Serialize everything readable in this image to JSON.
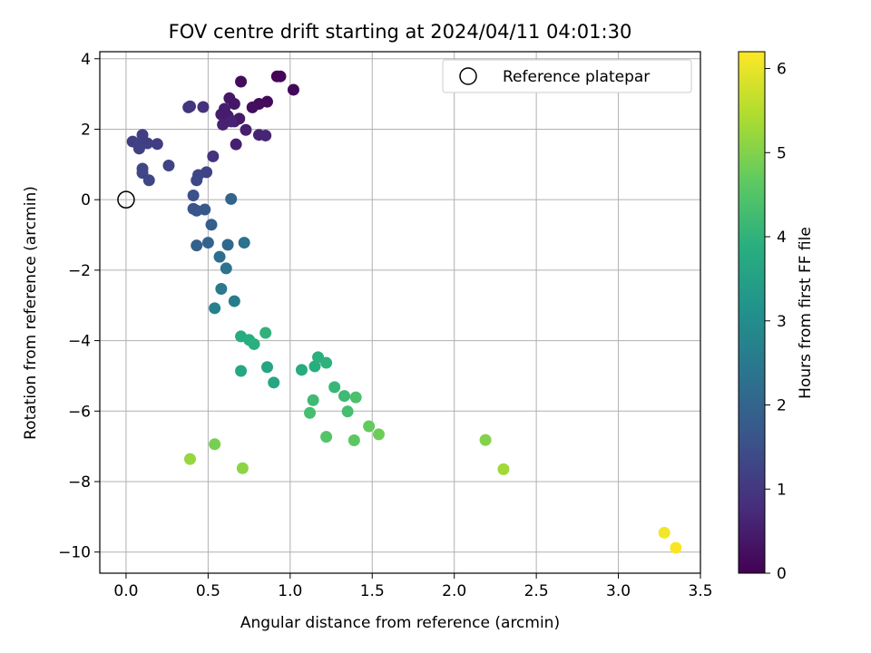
{
  "chart_data": {
    "type": "scatter",
    "title": "FOV centre drift starting at 2024/04/11 04:01:30",
    "xlabel": "Angular distance from reference (arcmin)",
    "ylabel": "Rotation from reference (arcmin)",
    "xlim": [
      -0.16,
      3.5
    ],
    "ylim": [
      -10.6,
      4.2
    ],
    "xticks": [
      0.0,
      0.5,
      1.0,
      1.5,
      2.0,
      2.5,
      3.0,
      3.5
    ],
    "xtick_labels": [
      "0.0",
      "0.5",
      "1.0",
      "1.5",
      "2.0",
      "2.5",
      "3.0",
      "3.5"
    ],
    "yticks": [
      4,
      2,
      0,
      -2,
      -4,
      -6,
      -8,
      -10
    ],
    "ytick_labels": [
      "4",
      "2",
      "0",
      "−2",
      "−4",
      "−6",
      "−8",
      "−10"
    ],
    "grid": true,
    "colormap": "viridis",
    "colorbar": {
      "label": "Hours from first FF file",
      "range": [
        0,
        6.2
      ],
      "ticks": [
        0,
        1,
        2,
        3,
        4,
        5,
        6
      ],
      "tick_labels": [
        "0",
        "1",
        "2",
        "3",
        "4",
        "5",
        "6"
      ]
    },
    "legend": {
      "placement": "top-right",
      "entries": [
        {
          "label": "Reference platepar",
          "marker": "open-circle"
        }
      ]
    },
    "reference_point": {
      "x": 0.0,
      "y": 0.0
    },
    "points": [
      {
        "x": 0.92,
        "y": 3.5,
        "c": 0.05
      },
      {
        "x": 0.94,
        "y": 3.5,
        "c": 0.08
      },
      {
        "x": 1.02,
        "y": 3.12,
        "c": 0.12
      },
      {
        "x": 0.7,
        "y": 3.35,
        "c": 0.2
      },
      {
        "x": 0.86,
        "y": 2.78,
        "c": 0.15
      },
      {
        "x": 0.81,
        "y": 2.72,
        "c": 0.18
      },
      {
        "x": 0.77,
        "y": 2.62,
        "c": 0.22
      },
      {
        "x": 0.63,
        "y": 2.88,
        "c": 0.4
      },
      {
        "x": 0.66,
        "y": 2.72,
        "c": 0.35
      },
      {
        "x": 0.6,
        "y": 2.58,
        "c": 0.55
      },
      {
        "x": 0.58,
        "y": 2.42,
        "c": 0.5
      },
      {
        "x": 0.62,
        "y": 2.38,
        "c": 0.45
      },
      {
        "x": 0.66,
        "y": 2.22,
        "c": 0.48
      },
      {
        "x": 0.69,
        "y": 2.3,
        "c": 0.42
      },
      {
        "x": 0.64,
        "y": 2.22,
        "c": 0.6
      },
      {
        "x": 0.59,
        "y": 2.13,
        "c": 0.58
      },
      {
        "x": 0.73,
        "y": 1.98,
        "c": 0.52
      },
      {
        "x": 0.81,
        "y": 1.84,
        "c": 0.62
      },
      {
        "x": 0.85,
        "y": 1.82,
        "c": 0.65
      },
      {
        "x": 0.67,
        "y": 1.57,
        "c": 0.55
      },
      {
        "x": 0.47,
        "y": 2.63,
        "c": 0.85
      },
      {
        "x": 0.39,
        "y": 2.65,
        "c": 0.9
      },
      {
        "x": 0.38,
        "y": 2.62,
        "c": 0.95
      },
      {
        "x": 0.53,
        "y": 1.23,
        "c": 0.9
      },
      {
        "x": 0.04,
        "y": 1.65,
        "c": 1.1
      },
      {
        "x": 0.1,
        "y": 1.84,
        "c": 1.15
      },
      {
        "x": 0.08,
        "y": 1.58,
        "c": 1.2
      },
      {
        "x": 0.13,
        "y": 1.6,
        "c": 1.15
      },
      {
        "x": 0.19,
        "y": 1.58,
        "c": 1.1
      },
      {
        "x": 0.08,
        "y": 1.45,
        "c": 1.2
      },
      {
        "x": 0.26,
        "y": 0.97,
        "c": 1.25
      },
      {
        "x": 0.1,
        "y": 0.88,
        "c": 1.3
      },
      {
        "x": 0.1,
        "y": 0.76,
        "c": 1.35
      },
      {
        "x": 0.14,
        "y": 0.55,
        "c": 1.3
      },
      {
        "x": 0.44,
        "y": 0.7,
        "c": 1.3
      },
      {
        "x": 0.49,
        "y": 0.78,
        "c": 1.25
      },
      {
        "x": 0.43,
        "y": 0.55,
        "c": 1.35
      },
      {
        "x": 0.41,
        "y": 0.12,
        "c": 1.5
      },
      {
        "x": 0.41,
        "y": -0.26,
        "c": 1.6
      },
      {
        "x": 0.43,
        "y": -0.31,
        "c": 1.65
      },
      {
        "x": 0.48,
        "y": -0.28,
        "c": 1.7
      },
      {
        "x": 0.64,
        "y": 0.02,
        "c": 2.0
      },
      {
        "x": 0.52,
        "y": -0.71,
        "c": 1.85
      },
      {
        "x": 0.43,
        "y": -1.3,
        "c": 1.9
      },
      {
        "x": 0.5,
        "y": -1.22,
        "c": 1.95
      },
      {
        "x": 0.62,
        "y": -1.28,
        "c": 2.1
      },
      {
        "x": 0.72,
        "y": -1.22,
        "c": 2.3
      },
      {
        "x": 0.57,
        "y": -1.62,
        "c": 2.2
      },
      {
        "x": 0.61,
        "y": -1.95,
        "c": 2.35
      },
      {
        "x": 0.58,
        "y": -2.53,
        "c": 2.5
      },
      {
        "x": 0.66,
        "y": -2.88,
        "c": 2.6
      },
      {
        "x": 0.54,
        "y": -3.08,
        "c": 2.7
      },
      {
        "x": 0.7,
        "y": -3.88,
        "c": 3.8
      },
      {
        "x": 0.75,
        "y": -3.98,
        "c": 3.85
      },
      {
        "x": 0.78,
        "y": -4.1,
        "c": 3.9
      },
      {
        "x": 0.85,
        "y": -3.78,
        "c": 4.0
      },
      {
        "x": 0.7,
        "y": -4.86,
        "c": 3.7
      },
      {
        "x": 0.86,
        "y": -4.75,
        "c": 3.6
      },
      {
        "x": 0.9,
        "y": -5.19,
        "c": 3.7
      },
      {
        "x": 1.07,
        "y": -4.83,
        "c": 3.8
      },
      {
        "x": 1.15,
        "y": -4.73,
        "c": 3.85
      },
      {
        "x": 1.17,
        "y": -4.47,
        "c": 3.9
      },
      {
        "x": 1.22,
        "y": -4.63,
        "c": 3.95
      },
      {
        "x": 1.14,
        "y": -5.69,
        "c": 4.2
      },
      {
        "x": 1.12,
        "y": -6.05,
        "c": 4.3
      },
      {
        "x": 1.27,
        "y": -5.32,
        "c": 4.1
      },
      {
        "x": 1.33,
        "y": -5.57,
        "c": 4.2
      },
      {
        "x": 1.35,
        "y": -6.01,
        "c": 4.3
      },
      {
        "x": 1.4,
        "y": -5.61,
        "c": 4.4
      },
      {
        "x": 1.22,
        "y": -6.73,
        "c": 4.5
      },
      {
        "x": 1.39,
        "y": -6.83,
        "c": 4.6
      },
      {
        "x": 1.48,
        "y": -6.43,
        "c": 4.7
      },
      {
        "x": 1.54,
        "y": -6.66,
        "c": 4.8
      },
      {
        "x": 0.54,
        "y": -6.94,
        "c": 4.9
      },
      {
        "x": 0.39,
        "y": -7.36,
        "c": 5.2
      },
      {
        "x": 0.71,
        "y": -7.62,
        "c": 5.1
      },
      {
        "x": 2.19,
        "y": -6.82,
        "c": 5.0
      },
      {
        "x": 2.3,
        "y": -7.65,
        "c": 5.3
      },
      {
        "x": 3.28,
        "y": -9.45,
        "c": 6.1
      },
      {
        "x": 3.35,
        "y": -9.88,
        "c": 6.15
      }
    ]
  }
}
